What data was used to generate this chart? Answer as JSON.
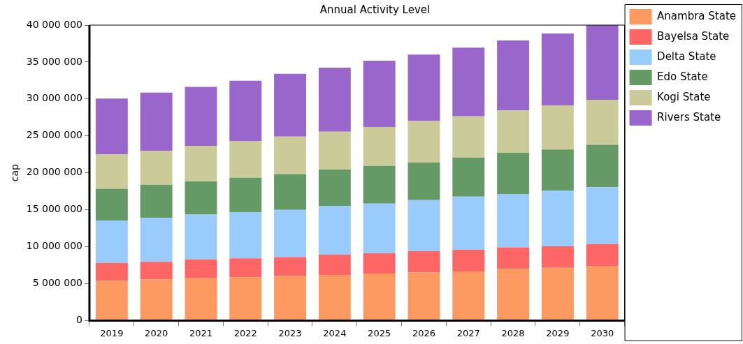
{
  "chart_data": {
    "type": "bar",
    "title": "Annual Activity Level",
    "ylabel": "cap",
    "stacked": true,
    "legend": "top right",
    "grid": false,
    "categories": [
      "2019",
      "2020",
      "2021",
      "2022",
      "2023",
      "2024",
      "2025",
      "2026",
      "2027",
      "2028",
      "2029",
      "2030"
    ],
    "ylim": [
      0,
      40000000
    ],
    "yticks": [
      {
        "value": 0,
        "label": "0"
      },
      {
        "value": 5000000,
        "label": "5 000 000"
      },
      {
        "value": 10000000,
        "label": "10 000 000"
      },
      {
        "value": 15000000,
        "label": "15 000 000"
      },
      {
        "value": 20000000,
        "label": "20 000 000"
      },
      {
        "value": 25000000,
        "label": "25 000 000"
      },
      {
        "value": 30000000,
        "label": "30 000 000"
      },
      {
        "value": 35000000,
        "label": "35 000 000"
      },
      {
        "value": 40000000,
        "label": "40 000 000"
      }
    ],
    "series": [
      {
        "name": "Anambra State",
        "color": "#fd9a61",
        "values": [
          5400000,
          5570000,
          5730000,
          5860000,
          6030000,
          6190000,
          6360000,
          6520000,
          6650000,
          7010000,
          7140000,
          7340000
        ]
      },
      {
        "name": "Bayelsa State",
        "color": "#fe6565",
        "values": [
          2400000,
          2390000,
          2560000,
          2560000,
          2550000,
          2720000,
          2750000,
          2880000,
          2920000,
          2890000,
          2920000,
          3010000
        ]
      },
      {
        "name": "Delta State",
        "color": "#99ccfd",
        "values": [
          5750000,
          5930000,
          6060000,
          6260000,
          6420000,
          6590000,
          6720000,
          6920000,
          7210000,
          7200000,
          7540000,
          7700000
        ]
      },
      {
        "name": "Edo State",
        "color": "#659966",
        "values": [
          4300000,
          4490000,
          4490000,
          4650000,
          4820000,
          4950000,
          5110000,
          5080000,
          5270000,
          5610000,
          5570000,
          5740000
        ]
      },
      {
        "name": "Kogi State",
        "color": "#cbcb9a",
        "values": [
          4650000,
          4620000,
          4820000,
          4950000,
          5080000,
          5110000,
          5270000,
          5600000,
          5600000,
          5730000,
          5960000,
          6090000
        ]
      },
      {
        "name": "Rivers State",
        "color": "#9966cb",
        "values": [
          7550000,
          7860000,
          7990000,
          8190000,
          8520000,
          8680000,
          8980000,
          9010000,
          9310000,
          9470000,
          9730000,
          10120000
        ]
      }
    ]
  }
}
